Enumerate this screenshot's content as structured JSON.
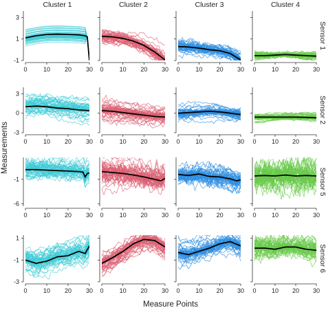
{
  "chart_data": {
    "type": "line",
    "xlabel": "Measure Points",
    "ylabel": "Measurements",
    "column_labels": [
      "Cluster 1",
      "Cluster 2",
      "Cluster 3",
      "Cluster 4"
    ],
    "row_labels": [
      "Sensor 1",
      "Sensor 2",
      "Sensor 5",
      "Sensor 6"
    ],
    "cluster_colors": [
      "#3ecbd6",
      "#db5f72",
      "#2e8de0",
      "#68c94a"
    ],
    "mean_line_color": "#000000",
    "x_ticks": [
      0,
      10,
      20,
      30
    ],
    "xlim": [
      0,
      30
    ],
    "rows": [
      {
        "sensor": "Sensor 1",
        "y_ticks": [
          -1,
          1,
          3
        ],
        "ylim": [
          -1,
          3.6
        ]
      },
      {
        "sensor": "Sensor 2",
        "y_ticks": [
          -3,
          0,
          3
        ],
        "ylim": [
          -3,
          4
        ]
      },
      {
        "sensor": "Sensor 5",
        "y_ticks": [
          -6,
          -1
        ],
        "ylim": [
          -6.5,
          3.5
        ]
      },
      {
        "sensor": "Sensor 6",
        "y_ticks": [
          -3,
          -1,
          1
        ],
        "ylim": [
          -3,
          1.3
        ]
      }
    ],
    "panels": [
      {
        "row": 0,
        "col": 0,
        "mean": [
          [
            0,
            1.1
          ],
          [
            5,
            1.3
          ],
          [
            10,
            1.42
          ],
          [
            15,
            1.45
          ],
          [
            20,
            1.42
          ],
          [
            25,
            1.38
          ],
          [
            28,
            1.3
          ],
          [
            29,
            1.2
          ],
          [
            30,
            -1
          ]
        ]
      },
      {
        "row": 0,
        "col": 1,
        "mean": [
          [
            0,
            1.25
          ],
          [
            5,
            1.2
          ],
          [
            10,
            1.05
          ],
          [
            15,
            0.8
          ],
          [
            20,
            0.4
          ],
          [
            25,
            -0.2
          ],
          [
            30,
            -0.95
          ]
        ]
      },
      {
        "row": 0,
        "col": 2,
        "mean": [
          [
            0,
            0.3
          ],
          [
            5,
            0.25
          ],
          [
            10,
            0.15
          ],
          [
            15,
            0.0
          ],
          [
            20,
            -0.1
          ],
          [
            25,
            -0.35
          ],
          [
            30,
            -0.95
          ]
        ]
      },
      {
        "row": 0,
        "col": 3,
        "mean": [
          [
            0,
            -0.55
          ],
          [
            5,
            -0.55
          ],
          [
            10,
            -0.5
          ],
          [
            15,
            -0.45
          ],
          [
            20,
            -0.5
          ],
          [
            25,
            -0.55
          ],
          [
            30,
            -0.6
          ]
        ]
      },
      {
        "row": 1,
        "col": 0,
        "mean": [
          [
            0,
            1.0
          ],
          [
            5,
            1.1
          ],
          [
            10,
            1.0
          ],
          [
            15,
            0.8
          ],
          [
            20,
            0.7
          ],
          [
            25,
            0.5
          ],
          [
            30,
            0.4
          ]
        ]
      },
      {
        "row": 1,
        "col": 1,
        "mean": [
          [
            0,
            0.4
          ],
          [
            5,
            0.3
          ],
          [
            10,
            0.1
          ],
          [
            15,
            -0.1
          ],
          [
            20,
            -0.3
          ],
          [
            25,
            -0.5
          ],
          [
            30,
            -0.6
          ]
        ]
      },
      {
        "row": 1,
        "col": 2,
        "mean": [
          [
            0,
            0.0
          ],
          [
            5,
            0.1
          ],
          [
            10,
            0.2
          ],
          [
            15,
            0.3
          ],
          [
            20,
            0.2
          ],
          [
            25,
            0.0
          ],
          [
            30,
            -0.2
          ]
        ]
      },
      {
        "row": 1,
        "col": 3,
        "mean": [
          [
            0,
            -0.6
          ],
          [
            5,
            -0.6
          ],
          [
            10,
            -0.6
          ],
          [
            15,
            -0.6
          ],
          [
            20,
            -0.6
          ],
          [
            25,
            -0.65
          ],
          [
            30,
            -0.7
          ]
        ]
      },
      {
        "row": 2,
        "col": 0,
        "mean": [
          [
            0,
            1.0
          ],
          [
            5,
            1.0
          ],
          [
            10,
            0.9
          ],
          [
            15,
            0.8
          ],
          [
            20,
            0.7
          ],
          [
            25,
            0.6
          ],
          [
            27,
            0.5
          ],
          [
            28,
            -0.5
          ],
          [
            29,
            0.2
          ],
          [
            30,
            0.3
          ]
        ]
      },
      {
        "row": 2,
        "col": 1,
        "mean": [
          [
            0,
            0.6
          ],
          [
            5,
            0.4
          ],
          [
            10,
            0.2
          ],
          [
            15,
            -0.1
          ],
          [
            20,
            -0.5
          ],
          [
            25,
            -1.0
          ],
          [
            28,
            -1.3
          ],
          [
            30,
            -0.8
          ]
        ]
      },
      {
        "row": 2,
        "col": 2,
        "mean": [
          [
            0,
            0.0
          ],
          [
            5,
            -0.2
          ],
          [
            10,
            0.1
          ],
          [
            15,
            -0.4
          ],
          [
            20,
            -0.5
          ],
          [
            25,
            -0.9
          ],
          [
            28,
            -1.3
          ],
          [
            30,
            -1.1
          ]
        ]
      },
      {
        "row": 2,
        "col": 3,
        "mean": [
          [
            0,
            -0.3
          ],
          [
            5,
            -0.2
          ],
          [
            10,
            -0.3
          ],
          [
            15,
            -0.1
          ],
          [
            20,
            -0.3
          ],
          [
            25,
            -0.2
          ],
          [
            30,
            -0.3
          ]
        ]
      },
      {
        "row": 3,
        "col": 0,
        "mean": [
          [
            0,
            -1.0
          ],
          [
            5,
            -1.3
          ],
          [
            10,
            -1.1
          ],
          [
            15,
            -0.7
          ],
          [
            20,
            -0.6
          ],
          [
            25,
            -0.2
          ],
          [
            28,
            -0.4
          ],
          [
            30,
            0.3
          ]
        ]
      },
      {
        "row": 3,
        "col": 1,
        "mean": [
          [
            0,
            -1.3
          ],
          [
            5,
            -0.8
          ],
          [
            10,
            -0.2
          ],
          [
            15,
            0.5
          ],
          [
            20,
            0.9
          ],
          [
            25,
            0.8
          ],
          [
            30,
            0.2
          ]
        ]
      },
      {
        "row": 3,
        "col": 2,
        "mean": [
          [
            0,
            -0.3
          ],
          [
            5,
            -0.5
          ],
          [
            10,
            -0.2
          ],
          [
            15,
            0.1
          ],
          [
            20,
            0.5
          ],
          [
            25,
            0.7
          ],
          [
            30,
            0.3
          ]
        ]
      },
      {
        "row": 3,
        "col": 3,
        "mean": [
          [
            0,
            0.1
          ],
          [
            5,
            0.1
          ],
          [
            10,
            0.0
          ],
          [
            15,
            0.2
          ],
          [
            20,
            0.2
          ],
          [
            25,
            0.0
          ],
          [
            30,
            -0.1
          ]
        ]
      }
    ]
  }
}
